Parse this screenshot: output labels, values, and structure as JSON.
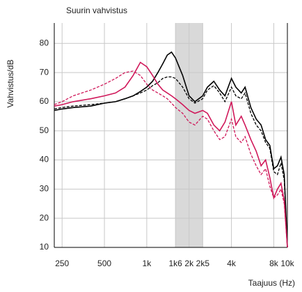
{
  "chart_data": {
    "type": "line",
    "title": "Suurin vahvistus",
    "y_label": "Vahvistus/dB",
    "x_label": "Taajuus (Hz)",
    "log_x": true,
    "grid": true,
    "shaded_band": [
      1600,
      2500
    ],
    "x": [
      220,
      250,
      300,
      400,
      500,
      600,
      700,
      800,
      900,
      1000,
      1100,
      1200,
      1300,
      1400,
      1500,
      1600,
      1800,
      2000,
      2200,
      2500,
      2700,
      3000,
      3300,
      3600,
      4000,
      4300,
      4700,
      5000,
      5500,
      6000,
      6500,
      7000,
      7500,
      8000,
      8500,
      9000,
      9500,
      10000
    ],
    "series": [
      {
        "color": "#000000",
        "dash": false,
        "values": [
          57,
          57.5,
          58,
          58.5,
          59.5,
          60,
          61,
          62,
          63.5,
          65,
          67,
          70,
          73,
          76,
          77,
          75,
          69,
          62,
          60,
          62,
          65,
          67,
          64,
          62,
          68,
          65,
          63,
          65,
          58,
          54,
          52,
          47,
          45,
          37,
          38,
          41,
          35,
          10
        ]
      },
      {
        "color": "#000000",
        "dash": true,
        "values": [
          57.5,
          58,
          58.5,
          59,
          59.5,
          60,
          61,
          62,
          63,
          64,
          65.5,
          66.5,
          68,
          68.5,
          68.5,
          68,
          65,
          61,
          59.5,
          61,
          64,
          65.5,
          63,
          60,
          65,
          62,
          61,
          63,
          56,
          52,
          50,
          46,
          44,
          36,
          35,
          39,
          33,
          10
        ]
      },
      {
        "color": "#d0185a",
        "dash": false,
        "values": [
          58.5,
          59,
          60,
          61,
          62,
          63,
          65,
          69,
          73.5,
          72,
          69,
          66,
          64,
          63,
          62,
          61,
          59,
          57,
          56,
          57,
          56,
          52,
          50,
          53,
          60,
          52,
          55,
          52,
          47,
          43,
          38,
          40,
          34,
          27,
          30,
          32,
          26,
          10
        ]
      },
      {
        "color": "#d0185a",
        "dash": true,
        "values": [
          59,
          60,
          62,
          64,
          66,
          68,
          70,
          70.5,
          69,
          66,
          64,
          63,
          62,
          61,
          59.5,
          58,
          56,
          53,
          52,
          55,
          54,
          50,
          47,
          48,
          54,
          48,
          46,
          48,
          42,
          38,
          35,
          37,
          31,
          27,
          28,
          30,
          25,
          10
        ]
      }
    ],
    "xlim": [
      220,
      10000
    ],
    "xticks": [
      {
        "value": 250,
        "label": "250"
      },
      {
        "value": 500,
        "label": "500"
      },
      {
        "value": 1000,
        "label": "1k"
      },
      {
        "value": 1600,
        "label": "1k6"
      },
      {
        "value": 2000,
        "label": "2k"
      },
      {
        "value": 2500,
        "label": "2k5"
      },
      {
        "value": 4000,
        "label": "4k"
      },
      {
        "value": 8000,
        "label": "8k"
      },
      {
        "value": 10000,
        "label": "10k"
      }
    ],
    "ylim": [
      10,
      87
    ],
    "yticks": [
      10,
      20,
      30,
      40,
      50,
      60,
      70,
      80
    ]
  }
}
